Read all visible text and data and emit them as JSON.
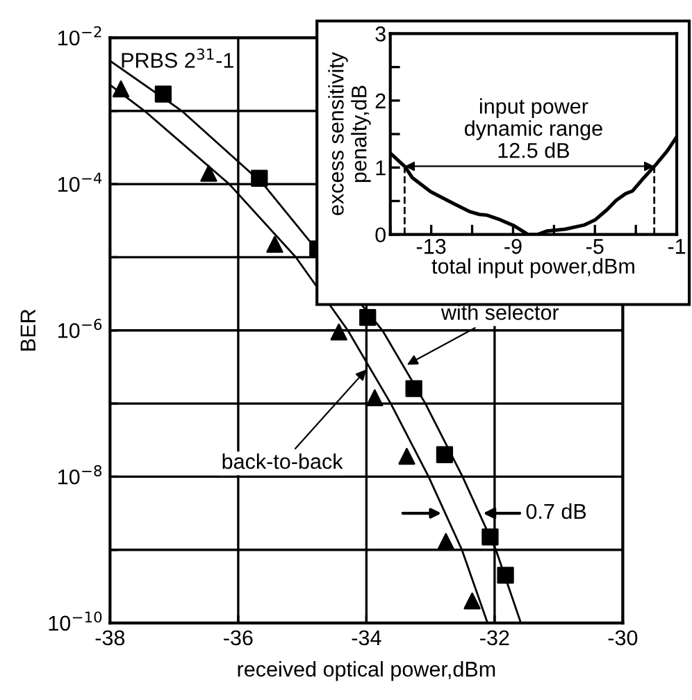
{
  "chart_data": [
    {
      "type": "scatter",
      "xlabel": "received optical power,dBm",
      "ylabel": "BER",
      "log": "y",
      "grid": true,
      "xlim": [
        -38,
        -30
      ],
      "xticks": [
        -38,
        -36,
        -34,
        -32,
        -30
      ],
      "ylim": [
        1e-10,
        0.01
      ],
      "yticks": [
        {
          "value": 0.01,
          "label": "10$^{−2}$"
        },
        {
          "value": 0.001,
          "label": null
        },
        {
          "value": 0.0001,
          "label": "10$^{−4}$"
        },
        {
          "value": 1e-05,
          "label": null
        },
        {
          "value": 1e-06,
          "label": "10$^{−6}$"
        },
        {
          "value": 1e-07,
          "label": null
        },
        {
          "value": 1e-08,
          "label": "10$^{−8}$"
        },
        {
          "value": 1e-09,
          "label": null
        },
        {
          "value": 1e-10,
          "label": "10$^{−10}$"
        }
      ],
      "series": [
        {
          "type": "scatter",
          "marker": "triangle",
          "color": "#000000",
          "x": [
            -37.83,
            -36.46,
            -35.43,
            -34.43,
            -33.87,
            -33.37,
            -32.76,
            -32.35
          ],
          "values": [
            0.002,
            0.00014,
            1.5e-05,
            9.5e-07,
            1.2e-07,
            1.9e-08,
            1.3e-09,
            2e-10
          ]
        },
        {
          "type": "scatter",
          "marker": "square",
          "color": "#000000",
          "x": [
            -37.17,
            -35.67,
            -34.76,
            -33.98,
            -33.26,
            -32.78,
            -32.07,
            -31.83
          ],
          "values": [
            0.0017,
            0.00012,
            1.3e-05,
            1.5e-06,
            1.6e-07,
            2e-08,
            1.5e-09,
            4.5e-10
          ]
        },
        {
          "type": "line",
          "marker": "none",
          "color": "#000000",
          "x": [
            -37.98,
            -36.88,
            -35.61,
            -33.75,
            -33.08,
            -32.5,
            -31.98,
            -31.59
          ],
          "values": [
            0.0047,
            0.001,
            0.0001,
            1e-06,
            1e-07,
            1e-08,
            1e-09,
            1e-10
          ]
        },
        {
          "type": "line",
          "marker": "none",
          "color": "#000000",
          "x": [
            -37.98,
            -37.46,
            -36.14,
            -35.1,
            -34.29,
            -33.62,
            -33.03,
            -32.51,
            -32.11
          ],
          "values": [
            0.0022,
            0.001,
            0.0001,
            1e-05,
            1e-06,
            1e-07,
            1e-08,
            1e-09,
            1e-10
          ]
        }
      ],
      "annotations": [
        "PRBS 2$^{31}$-1",
        {
          "text": "with selector",
          "x": -33.42,
          "y": 3.2e-07
        },
        {
          "text": "back-to-back",
          "x": -33.96,
          "y": 3.2e-07
        },
        "0.7 dB"
      ]
    },
    {
      "type": "line",
      "xlabel": "total input power,dBm",
      "ylabel": "excess sensitivity\npenalty,dB",
      "grid": false,
      "marker": "none",
      "line_style": "solid",
      "xlim": [
        -15,
        -1
      ],
      "xticks": [
        {
          "value": -15,
          "label": null
        },
        -13,
        {
          "value": -11,
          "label": null
        },
        -9,
        {
          "value": -7,
          "label": null
        },
        -5,
        {
          "value": -3,
          "label": null
        },
        -1
      ],
      "ylim": [
        0,
        3
      ],
      "yticks": [
        0,
        {
          "value": 0.5,
          "label": null
        },
        1,
        {
          "value": 1.5,
          "label": null
        },
        2,
        {
          "value": 2.5,
          "label": null
        },
        3
      ],
      "series": [
        {
          "color": "#000000",
          "x": [
            -14.95,
            -14.27,
            -13.93,
            -13.03,
            -11.9,
            -11.1,
            -10.65,
            -10.3,
            -9.63,
            -8.95,
            -8.27,
            -7.8,
            -7.36,
            -6.45,
            -5.54,
            -4.98,
            -4.41,
            -3.96,
            -3.5,
            -3.16,
            -2.6,
            -2.03,
            -1.46,
            -1.0
          ],
          "values": [
            1.2,
            1.01,
            0.85,
            0.64,
            0.46,
            0.34,
            0.3,
            0.29,
            0.22,
            0.13,
            0.0,
            0.0,
            0.05,
            0.08,
            0.14,
            0.22,
            0.37,
            0.51,
            0.61,
            0.65,
            0.85,
            1.04,
            1.25,
            1.46
          ]
        }
      ],
      "ref_lines": [
        {
          "axis": "x",
          "value": -14.3,
          "line_style": "dashed",
          "color": "#000000"
        },
        {
          "axis": "x",
          "value": -2.1,
          "line_style": "dashed",
          "color": "#000000"
        }
      ],
      "annotations": [
        "input power\ndynamic range\n12.5 dB"
      ]
    }
  ]
}
